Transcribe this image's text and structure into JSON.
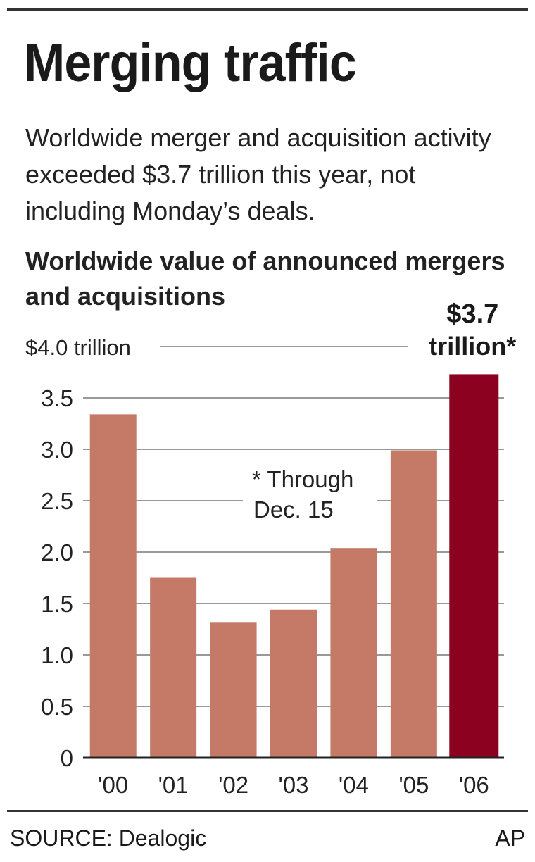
{
  "header": {
    "title": "Merging traffic",
    "subtitle": "Worldwide merger and acquisition activity exceeded $3.7 trillion this year, not including Monday’s deals."
  },
  "chart_data": {
    "type": "bar",
    "title": "Worldwide value of announced mergers and acquisitions",
    "categories": [
      "'00",
      "'01",
      "'02",
      "'03",
      "'04",
      "'05",
      "'06"
    ],
    "values": [
      3.34,
      1.75,
      1.32,
      1.44,
      2.04,
      2.99,
      3.73
    ],
    "y_ticks": [
      {
        "value": 0,
        "label": "0"
      },
      {
        "value": 0.5,
        "label": "0.5"
      },
      {
        "value": 1.0,
        "label": "1.0"
      },
      {
        "value": 1.5,
        "label": "1.5"
      },
      {
        "value": 2.0,
        "label": "2.0"
      },
      {
        "value": 2.5,
        "label": "2.5"
      },
      {
        "value": 3.0,
        "label": "3.0"
      },
      {
        "value": 3.5,
        "label": "3.5"
      },
      {
        "value": 4.0,
        "label": "$4.0 trillion"
      }
    ],
    "ylim": [
      0,
      4.0
    ],
    "grid": true,
    "highlight_label": [
      "$3.7",
      "trillion*"
    ],
    "annotation": [
      "* Through",
      "Dec. 15"
    ],
    "colors": {
      "bar": "#c47a66",
      "highlight": "#8c0020",
      "grid": "#999999"
    }
  },
  "footer": {
    "source": "SOURCE: Dealogic",
    "credit": "AP"
  }
}
